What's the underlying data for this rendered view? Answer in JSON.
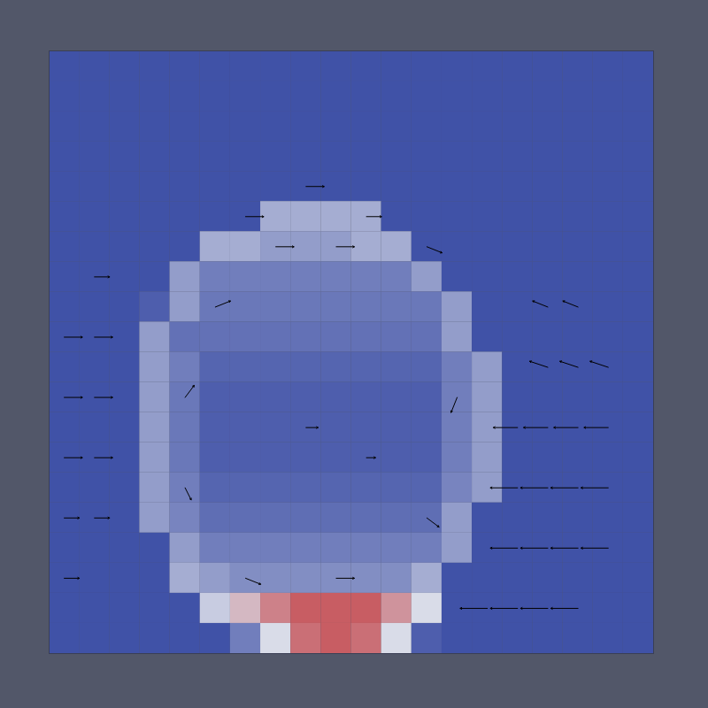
{
  "chart_data": {
    "type": "heatmap",
    "tick_labels": false,
    "xlim": [
      0,
      20
    ],
    "ylim": [
      0,
      20
    ],
    "zlim": [
      0,
      1
    ],
    "colors": [
      "#2b3f9e",
      "#d9dce8",
      "#c0262a"
    ],
    "cells": [
      [
        0.06,
        0.06,
        0.06,
        0.06,
        0.06,
        0.06,
        0.06,
        0.06,
        0.06,
        0.06,
        0.06,
        0.06,
        0.06,
        0.06,
        0.06,
        0.06,
        0.06,
        0.06,
        0.06,
        0.06
      ],
      [
        0.06,
        0.06,
        0.06,
        0.06,
        0.06,
        0.06,
        0.06,
        0.06,
        0.06,
        0.06,
        0.06,
        0.06,
        0.06,
        0.06,
        0.06,
        0.06,
        0.06,
        0.06,
        0.06,
        0.06
      ],
      [
        0.06,
        0.06,
        0.06,
        0.06,
        0.06,
        0.06,
        0.06,
        0.06,
        0.06,
        0.06,
        0.06,
        0.06,
        0.06,
        0.06,
        0.06,
        0.06,
        0.06,
        0.06,
        0.06,
        0.06
      ],
      [
        0.06,
        0.06,
        0.06,
        0.06,
        0.06,
        0.06,
        0.06,
        0.06,
        0.06,
        0.06,
        0.06,
        0.06,
        0.06,
        0.06,
        0.06,
        0.06,
        0.06,
        0.06,
        0.06,
        0.06
      ],
      [
        0.06,
        0.06,
        0.06,
        0.06,
        0.06,
        0.06,
        0.06,
        0.06,
        0.06,
        0.06,
        0.06,
        0.06,
        0.06,
        0.06,
        0.06,
        0.06,
        0.06,
        0.06,
        0.06,
        0.06
      ],
      [
        0.06,
        0.06,
        0.06,
        0.06,
        0.06,
        0.06,
        0.06,
        0.35,
        0.35,
        0.35,
        0.35,
        0.06,
        0.06,
        0.06,
        0.06,
        0.06,
        0.06,
        0.06,
        0.06,
        0.06
      ],
      [
        0.06,
        0.06,
        0.06,
        0.06,
        0.06,
        0.35,
        0.35,
        0.3,
        0.3,
        0.3,
        0.35,
        0.35,
        0.06,
        0.06,
        0.06,
        0.06,
        0.06,
        0.06,
        0.06,
        0.06
      ],
      [
        0.06,
        0.06,
        0.06,
        0.06,
        0.3,
        0.2,
        0.2,
        0.2,
        0.2,
        0.2,
        0.2,
        0.2,
        0.3,
        0.06,
        0.06,
        0.06,
        0.06,
        0.06,
        0.06,
        0.06
      ],
      [
        0.06,
        0.06,
        0.06,
        0.1,
        0.3,
        0.18,
        0.18,
        0.18,
        0.18,
        0.18,
        0.18,
        0.18,
        0.18,
        0.3,
        0.06,
        0.06,
        0.06,
        0.06,
        0.06,
        0.06
      ],
      [
        0.06,
        0.06,
        0.06,
        0.3,
        0.16,
        0.16,
        0.16,
        0.16,
        0.16,
        0.16,
        0.16,
        0.16,
        0.16,
        0.3,
        0.06,
        0.06,
        0.06,
        0.06,
        0.06,
        0.06
      ],
      [
        0.06,
        0.06,
        0.06,
        0.3,
        0.2,
        0.12,
        0.12,
        0.12,
        0.12,
        0.12,
        0.12,
        0.12,
        0.12,
        0.2,
        0.3,
        0.06,
        0.06,
        0.06,
        0.06,
        0.06
      ],
      [
        0.06,
        0.06,
        0.06,
        0.3,
        0.18,
        0.1,
        0.1,
        0.1,
        0.1,
        0.1,
        0.1,
        0.1,
        0.1,
        0.2,
        0.3,
        0.06,
        0.06,
        0.06,
        0.06,
        0.06
      ],
      [
        0.06,
        0.06,
        0.06,
        0.3,
        0.18,
        0.1,
        0.1,
        0.1,
        0.1,
        0.1,
        0.1,
        0.1,
        0.1,
        0.2,
        0.3,
        0.06,
        0.06,
        0.06,
        0.06,
        0.06
      ],
      [
        0.06,
        0.06,
        0.06,
        0.3,
        0.18,
        0.1,
        0.1,
        0.1,
        0.1,
        0.1,
        0.1,
        0.1,
        0.1,
        0.2,
        0.3,
        0.06,
        0.06,
        0.06,
        0.06,
        0.06
      ],
      [
        0.06,
        0.06,
        0.06,
        0.3,
        0.2,
        0.12,
        0.12,
        0.12,
        0.12,
        0.12,
        0.12,
        0.12,
        0.12,
        0.22,
        0.3,
        0.06,
        0.06,
        0.06,
        0.06,
        0.06
      ],
      [
        0.06,
        0.06,
        0.06,
        0.3,
        0.22,
        0.15,
        0.15,
        0.15,
        0.15,
        0.15,
        0.15,
        0.15,
        0.15,
        0.3,
        0.06,
        0.06,
        0.06,
        0.06,
        0.06,
        0.06
      ],
      [
        0.06,
        0.06,
        0.06,
        0.06,
        0.3,
        0.2,
        0.2,
        0.2,
        0.2,
        0.2,
        0.2,
        0.2,
        0.2,
        0.3,
        0.06,
        0.06,
        0.06,
        0.06,
        0.06,
        0.06
      ],
      [
        0.06,
        0.06,
        0.06,
        0.06,
        0.35,
        0.3,
        0.25,
        0.25,
        0.25,
        0.25,
        0.25,
        0.25,
        0.35,
        0.06,
        0.06,
        0.06,
        0.06,
        0.06,
        0.06,
        0.06
      ],
      [
        0.06,
        0.06,
        0.06,
        0.06,
        0.06,
        0.45,
        0.6,
        0.75,
        0.85,
        0.85,
        0.85,
        0.7,
        0.5,
        0.06,
        0.06,
        0.06,
        0.06,
        0.06,
        0.06,
        0.06
      ],
      [
        0.06,
        0.06,
        0.06,
        0.06,
        0.06,
        0.06,
        0.2,
        0.5,
        0.8,
        0.85,
        0.8,
        0.5,
        0.1,
        0.06,
        0.06,
        0.06,
        0.06,
        0.06,
        0.06,
        0.06
      ]
    ],
    "vectors": {
      "color": "#000000",
      "values": [
        [
          15.5,
          12.5,
          -0.8,
          0
        ],
        [
          16.5,
          12.5,
          -0.8,
          0
        ],
        [
          17.5,
          12.5,
          -0.8,
          0
        ],
        [
          18.5,
          12.5,
          -0.8,
          0
        ],
        [
          15.5,
          14.5,
          -0.9,
          0
        ],
        [
          16.5,
          14.5,
          -0.9,
          0
        ],
        [
          17.5,
          14.5,
          -0.9,
          0
        ],
        [
          18.5,
          14.5,
          -0.9,
          0
        ],
        [
          15.5,
          16.5,
          -0.9,
          0
        ],
        [
          16.5,
          16.5,
          -0.9,
          0
        ],
        [
          17.5,
          16.5,
          -0.9,
          0
        ],
        [
          18.5,
          16.5,
          -0.9,
          0
        ],
        [
          14.5,
          18.5,
          -0.9,
          0
        ],
        [
          15.5,
          18.5,
          -0.9,
          0
        ],
        [
          16.5,
          18.5,
          -0.9,
          0
        ],
        [
          17.5,
          18.5,
          -0.9,
          0
        ],
        [
          16.5,
          10.5,
          -0.6,
          -0.2
        ],
        [
          17.5,
          10.5,
          -0.6,
          -0.2
        ],
        [
          18.5,
          10.5,
          -0.6,
          -0.2
        ],
        [
          16.5,
          8.5,
          -0.5,
          -0.2
        ],
        [
          17.5,
          8.5,
          -0.5,
          -0.2
        ],
        [
          0.5,
          9.5,
          0.6,
          0
        ],
        [
          1.5,
          9.5,
          0.6,
          0
        ],
        [
          0.5,
          11.5,
          0.6,
          0
        ],
        [
          1.5,
          11.5,
          0.6,
          0
        ],
        [
          0.5,
          13.5,
          0.6,
          0
        ],
        [
          1.5,
          13.5,
          0.6,
          0
        ],
        [
          0.5,
          15.5,
          0.5,
          0
        ],
        [
          1.5,
          15.5,
          0.5,
          0
        ],
        [
          1.5,
          7.5,
          0.5,
          0
        ],
        [
          0.5,
          17.5,
          0.5,
          0
        ],
        [
          6.5,
          5.5,
          0.6,
          0
        ],
        [
          8.5,
          4.5,
          0.6,
          0
        ],
        [
          10.5,
          5.5,
          0.5,
          0
        ],
        [
          12.5,
          6.5,
          0.5,
          0.2
        ],
        [
          7.5,
          6.5,
          0.6,
          0
        ],
        [
          9.5,
          6.5,
          0.6,
          0
        ],
        [
          5.5,
          8.5,
          0.5,
          -0.2
        ],
        [
          4.5,
          11.5,
          0.3,
          -0.4
        ],
        [
          4.5,
          14.5,
          0.2,
          0.4
        ],
        [
          6.5,
          17.5,
          0.5,
          0.2
        ],
        [
          9.5,
          17.5,
          0.6,
          0
        ],
        [
          12.5,
          15.5,
          0.4,
          0.3
        ],
        [
          13.5,
          11.5,
          -0.2,
          0.5
        ],
        [
          8.5,
          12.5,
          0.4,
          0
        ],
        [
          10.5,
          13.5,
          0.3,
          0
        ]
      ]
    }
  }
}
